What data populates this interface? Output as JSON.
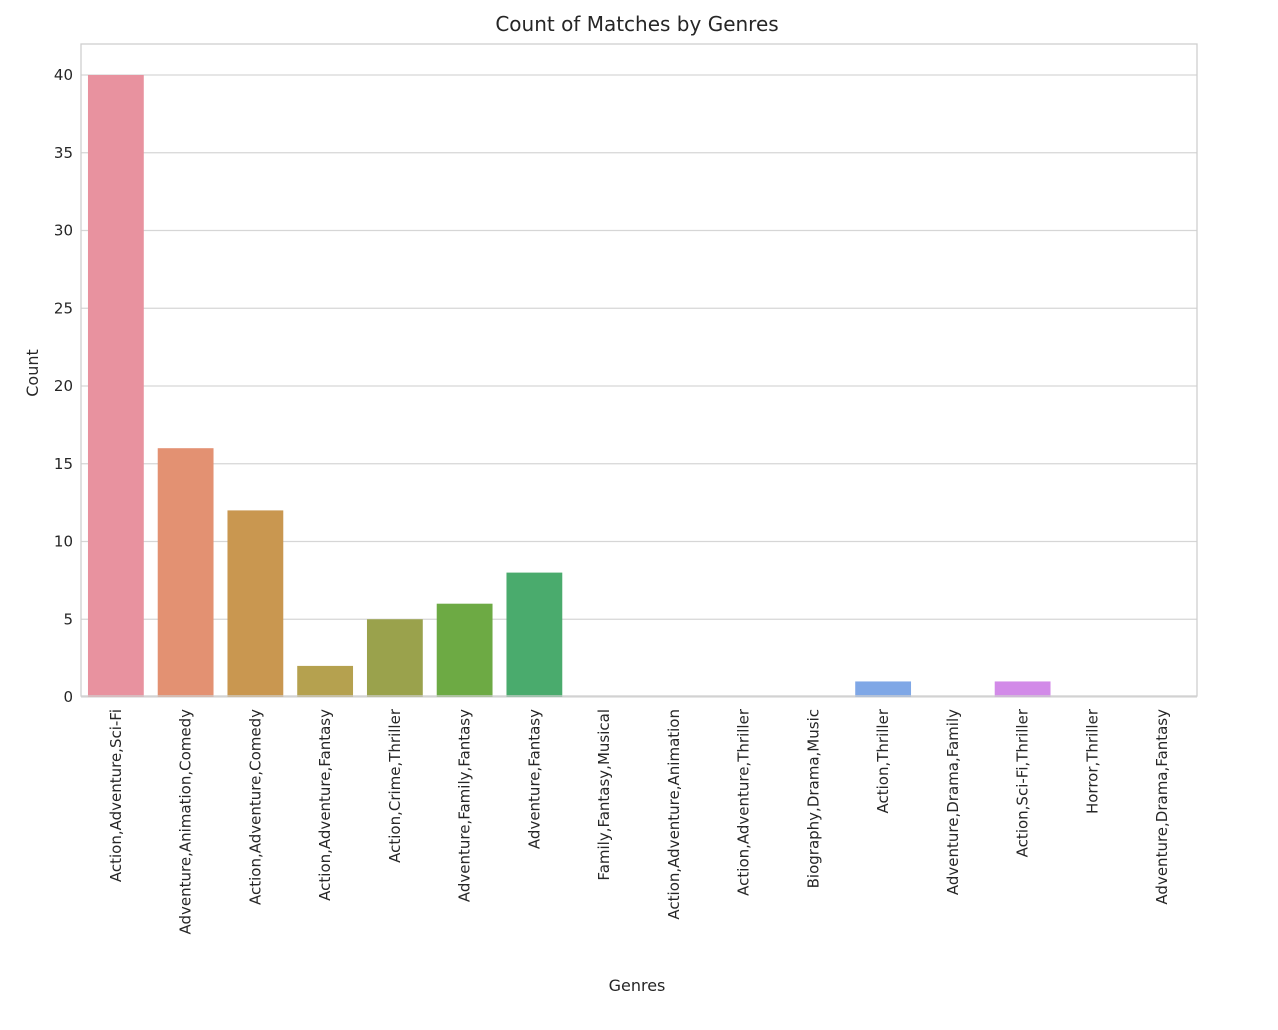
{
  "chart_data": {
    "type": "bar",
    "title": "Count of Matches by Genres",
    "xlabel": "Genres",
    "ylabel": "Count",
    "ylim": [
      0,
      42
    ],
    "yticks": [
      0,
      5,
      10,
      15,
      20,
      25,
      30,
      35,
      40
    ],
    "grid": "horizontal",
    "categories": [
      "Action,Adventure,Sci-Fi",
      "Adventure,Animation,Comedy",
      "Action,Adventure,Comedy",
      "Action,Adventure,Fantasy",
      "Action,Crime,Thriller",
      "Adventure,Family,Fantasy",
      "Adventure,Fantasy",
      "Family,Fantasy,Musical",
      "Action,Adventure,Animation",
      "Action,Adventure,Thriller",
      "Biography,Drama,Music",
      "Action,Thriller",
      "Adventure,Drama,Family",
      "Action,Sci-Fi,Thriller",
      "Horror,Thriller",
      "Adventure,Drama,Fantasy"
    ],
    "values": [
      40,
      16,
      12,
      2,
      5,
      6,
      8,
      0,
      0,
      0,
      0,
      1,
      0,
      1,
      0,
      0
    ],
    "colors": [
      "#e8929f",
      "#e39172",
      "#c99750",
      "#b5a14f",
      "#9aa24c",
      "#6daa44",
      "#4aab6d",
      "#4dab92",
      "#4eaaa7",
      "#50a8ba",
      "#5aa6cf",
      "#7fa7e6",
      "#a89ce9",
      "#d28ae8",
      "#e88ac5",
      "#e88ea8"
    ]
  }
}
